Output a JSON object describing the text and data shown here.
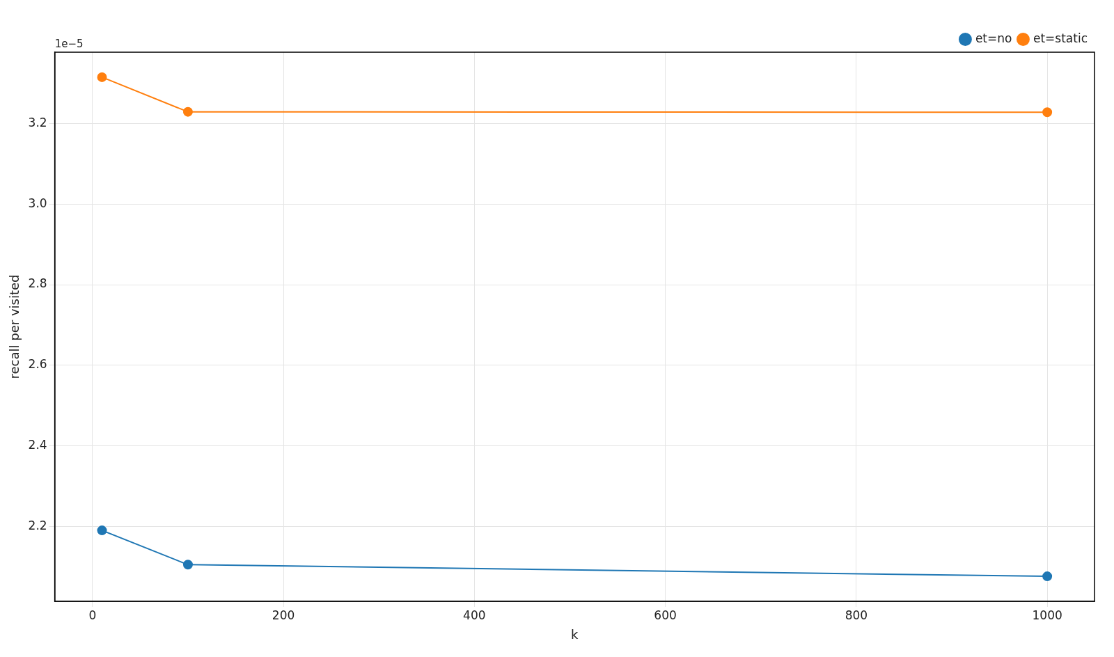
{
  "chart_data": {
    "type": "line",
    "xlabel": "k",
    "ylabel": "recall per visited",
    "annotations": [
      "1e−5"
    ],
    "x": [
      10,
      100,
      1000
    ],
    "series": [
      {
        "name": "et=no",
        "color": "#1f77b4",
        "values": [
          2.19,
          2.105,
          2.076
        ]
      },
      {
        "name": "et=static",
        "color": "#ff7f0e",
        "values": [
          3.315,
          3.229,
          3.228
        ]
      }
    ],
    "xlim": [
      -39.5,
      1049.5
    ],
    "xticks": [
      0,
      200,
      400,
      600,
      800,
      1000
    ],
    "ylim": [
      2.014,
      3.377
    ],
    "yticks": [
      {
        "value": 2.2,
        "label": "2.2"
      },
      {
        "value": 2.4,
        "label": "2.4"
      },
      {
        "value": 2.6,
        "label": "2.6"
      },
      {
        "value": 2.8,
        "label": "2.8"
      },
      {
        "value": 3.0,
        "label": "3.0"
      },
      {
        "value": 3.2,
        "label": "3.2"
      }
    ],
    "grid": true,
    "legend": "top right",
    "marker": "circle",
    "line_style": "solid"
  }
}
